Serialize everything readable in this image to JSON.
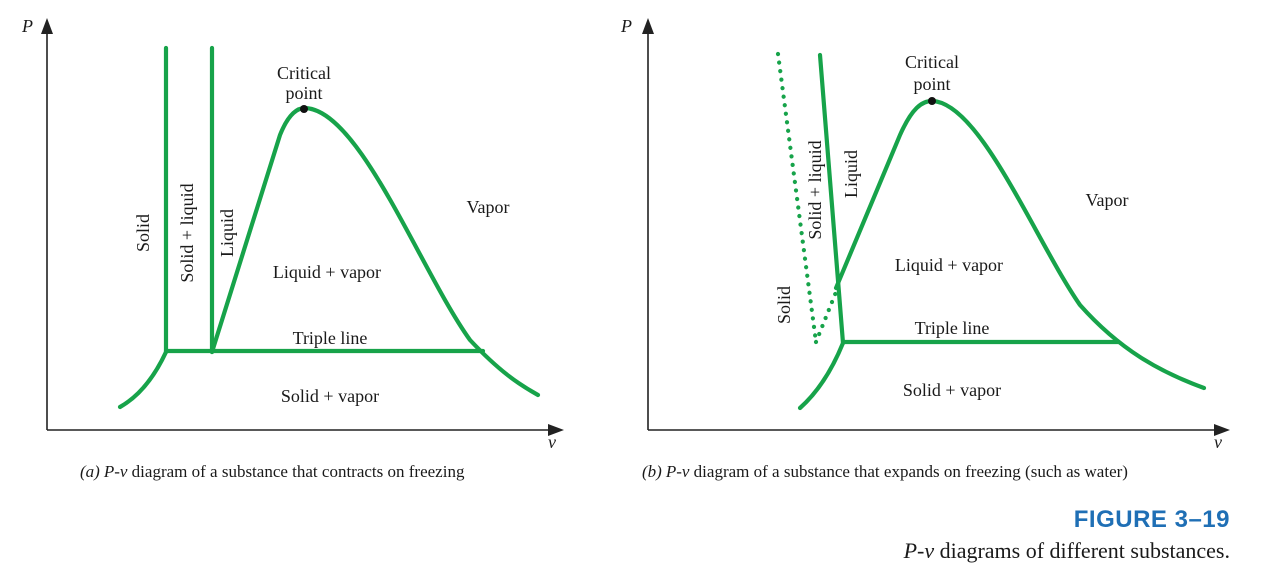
{
  "panel_a": {
    "axis_y": "P",
    "axis_x": "v",
    "labels": {
      "critical_line1": "Critical",
      "critical_line2": "point",
      "solid": "Solid",
      "solid_liquid": "Solid + liquid",
      "liquid": "Liquid",
      "vapor": "Vapor",
      "liquid_vapor": "Liquid + vapor",
      "triple_line": "Triple line",
      "solid_vapor": "Solid + vapor"
    },
    "caption": {
      "tag": "(a)",
      "var": "P-v",
      "text": " diagram of a substance that contracts on freezing"
    }
  },
  "panel_b": {
    "axis_y": "P",
    "axis_x": "v",
    "labels": {
      "critical_line1": "Critical",
      "critical_line2": "point",
      "solid": "Solid",
      "solid_liquid": "Solid + liquid",
      "liquid": "Liquid",
      "vapor": "Vapor",
      "liquid_vapor": "Liquid + vapor",
      "triple_line": "Triple line",
      "solid_vapor": "Solid + vapor"
    },
    "caption": {
      "tag": "(b)",
      "var": "P-v",
      "text": " diagram of a substance that expands on freezing (such as water)"
    }
  },
  "figure": {
    "number": "FIGURE 3–19",
    "var": "P-v",
    "caption": " diagrams of different substances."
  },
  "colors": {
    "curve": "#17a34a",
    "figure_number": "#1f6fb5"
  }
}
